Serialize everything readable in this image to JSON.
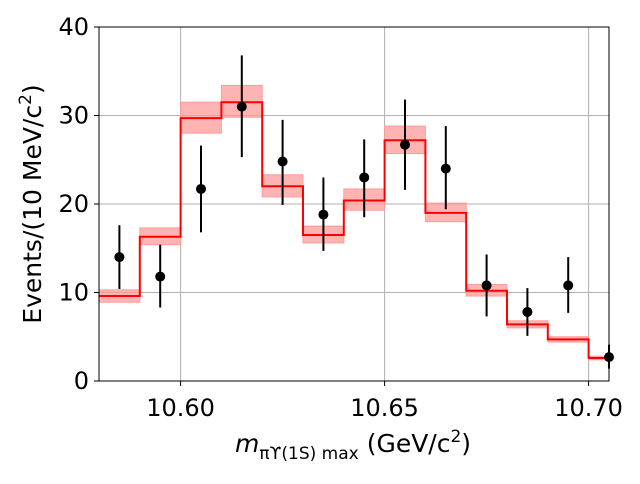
{
  "chart_data": {
    "type": "histogram",
    "xlabel_main": "m",
    "xlabel_sub": "πϒ(1S) max",
    "xlabel_unit": "(GeV/c",
    "xlabel_unit_sup": "2",
    "xlabel_unit_close": ")",
    "ylabel": "Events/(10 MeV/c",
    "ylabel_sup": "2",
    "ylabel_close": ")",
    "xlim": [
      10.58,
      10.705
    ],
    "ylim": [
      0,
      40
    ],
    "x_ticks": [
      10.6,
      10.65,
      10.7
    ],
    "x_tick_labels": [
      "10.60",
      "10.65",
      "10.70"
    ],
    "y_ticks": [
      0,
      10,
      20,
      30,
      40
    ],
    "y_tick_labels": [
      "0",
      "10",
      "20",
      "30",
      "40"
    ],
    "grid": true,
    "colors": {
      "fit": "#ff0000",
      "band": "#ff9b9b",
      "points": "#000000"
    },
    "fit_bins": [
      {
        "x0": 10.58,
        "x1": 10.59,
        "y": 9.6,
        "lo": 8.9,
        "hi": 10.3
      },
      {
        "x0": 10.59,
        "x1": 10.6,
        "y": 16.3,
        "lo": 15.4,
        "hi": 17.3
      },
      {
        "x0": 10.6,
        "x1": 10.61,
        "y": 29.7,
        "lo": 28.0,
        "hi": 31.5
      },
      {
        "x0": 10.61,
        "x1": 10.62,
        "y": 31.5,
        "lo": 29.8,
        "hi": 33.4
      },
      {
        "x0": 10.62,
        "x1": 10.63,
        "y": 22.0,
        "lo": 20.8,
        "hi": 23.3
      },
      {
        "x0": 10.63,
        "x1": 10.64,
        "y": 16.5,
        "lo": 15.6,
        "hi": 17.5
      },
      {
        "x0": 10.64,
        "x1": 10.65,
        "y": 20.4,
        "lo": 19.3,
        "hi": 21.7
      },
      {
        "x0": 10.65,
        "x1": 10.66,
        "y": 27.2,
        "lo": 25.7,
        "hi": 28.8
      },
      {
        "x0": 10.66,
        "x1": 10.67,
        "y": 19.0,
        "lo": 18.0,
        "hi": 20.1
      },
      {
        "x0": 10.67,
        "x1": 10.68,
        "y": 10.2,
        "lo": 9.6,
        "hi": 10.9
      },
      {
        "x0": 10.68,
        "x1": 10.69,
        "y": 6.4,
        "lo": 6.0,
        "hi": 6.8
      },
      {
        "x0": 10.69,
        "x1": 10.7,
        "y": 4.7,
        "lo": 4.4,
        "hi": 5.0
      },
      {
        "x0": 10.7,
        "x1": 10.705,
        "y": 2.6,
        "lo": 2.4,
        "hi": 2.8
      }
    ],
    "data_points": [
      {
        "x": 10.585,
        "y": 14.0,
        "yerr_lo": 3.6,
        "yerr_hi": 3.6
      },
      {
        "x": 10.595,
        "y": 11.8,
        "yerr_lo": 3.5,
        "yerr_hi": 3.6
      },
      {
        "x": 10.605,
        "y": 21.7,
        "yerr_lo": 4.9,
        "yerr_hi": 4.9
      },
      {
        "x": 10.615,
        "y": 31.0,
        "yerr_lo": 5.7,
        "yerr_hi": 5.8
      },
      {
        "x": 10.625,
        "y": 24.8,
        "yerr_lo": 4.9,
        "yerr_hi": 4.7
      },
      {
        "x": 10.635,
        "y": 18.8,
        "yerr_lo": 4.1,
        "yerr_hi": 4.2
      },
      {
        "x": 10.645,
        "y": 23.0,
        "yerr_lo": 4.5,
        "yerr_hi": 4.3
      },
      {
        "x": 10.655,
        "y": 26.7,
        "yerr_lo": 5.1,
        "yerr_hi": 5.1
      },
      {
        "x": 10.665,
        "y": 24.0,
        "yerr_lo": 4.6,
        "yerr_hi": 4.8
      },
      {
        "x": 10.675,
        "y": 10.8,
        "yerr_lo": 3.5,
        "yerr_hi": 3.5
      },
      {
        "x": 10.685,
        "y": 7.8,
        "yerr_lo": 2.7,
        "yerr_hi": 2.7
      },
      {
        "x": 10.695,
        "y": 10.8,
        "yerr_lo": 3.1,
        "yerr_hi": 3.2
      },
      {
        "x": 10.705,
        "y": 2.7,
        "yerr_lo": 1.3,
        "yerr_hi": 1.4
      }
    ]
  }
}
